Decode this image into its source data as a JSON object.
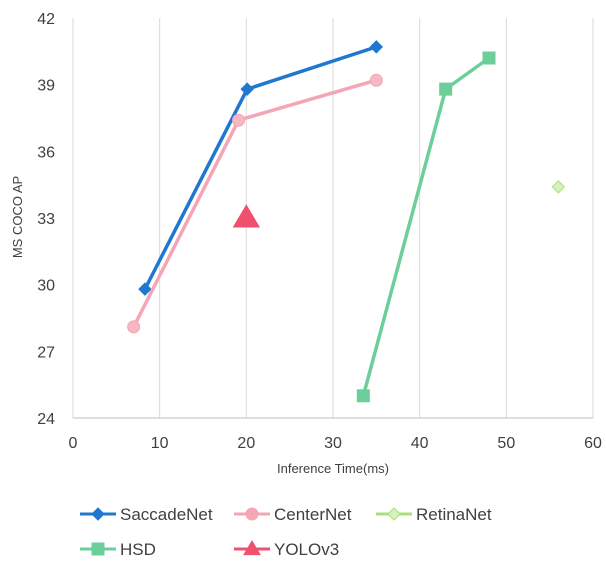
{
  "chart_data": {
    "type": "line",
    "xlabel": "Inference Time(ms)",
    "ylabel": "MS COCO AP",
    "xlim": [
      0,
      60
    ],
    "ylim": [
      24,
      42
    ],
    "xticks": [
      0,
      10,
      20,
      30,
      40,
      50,
      60
    ],
    "yticks": [
      24,
      27,
      30,
      33,
      36,
      39,
      42
    ],
    "grid": "vertical",
    "legend_position": "bottom",
    "series": [
      {
        "name": "SaccadeNet",
        "color": "#1f77d0",
        "marker": "diamond",
        "line": true,
        "points": [
          [
            8.3,
            29.8
          ],
          [
            20.1,
            38.8
          ],
          [
            35.0,
            40.7
          ]
        ]
      },
      {
        "name": "CenterNet",
        "color": "#f4a6b4",
        "marker": "circle",
        "line": true,
        "points": [
          [
            7.0,
            28.1
          ],
          [
            19.1,
            37.4
          ],
          [
            35.0,
            39.2
          ]
        ]
      },
      {
        "name": "RetinaNet",
        "color": "#a8e07a",
        "marker": "diamond",
        "line": false,
        "points": [
          [
            56.0,
            34.4
          ]
        ]
      },
      {
        "name": "HSD",
        "color": "#6ccf9a",
        "marker": "square",
        "line": true,
        "points": [
          [
            33.5,
            25.0
          ],
          [
            43.0,
            38.8
          ],
          [
            48.0,
            40.2
          ]
        ]
      },
      {
        "name": "YOLOv3",
        "color": "#f0506e",
        "marker": "triangle",
        "line": false,
        "points": [
          [
            20.0,
            33.0
          ]
        ]
      }
    ]
  }
}
